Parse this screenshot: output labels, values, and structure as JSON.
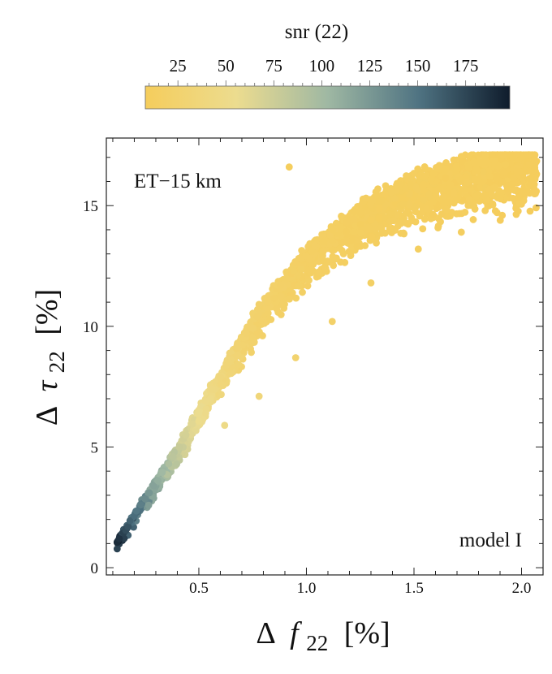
{
  "chart_data": {
    "type": "scatter",
    "title": "",
    "xlabel": "Δ f22 [%]",
    "xlabel_parts": {
      "delta": "Δ",
      "symbol": "f",
      "sub": "22",
      "unit": "[%]"
    },
    "ylabel": "Δ τ22 [%]",
    "ylabel_parts": {
      "delta": "Δ",
      "symbol": "τ",
      "sub": "22",
      "unit": "[%]"
    },
    "xlim": [
      0.07,
      2.1
    ],
    "ylim": [
      -0.3,
      17.8
    ],
    "x_ticks": [
      0.5,
      1.0,
      1.5,
      2.0
    ],
    "x_tick_labels": [
      "0.5",
      "1.0",
      "1.5",
      "2.0"
    ],
    "y_ticks": [
      0,
      5,
      10,
      15
    ],
    "y_tick_labels": [
      "0",
      "5",
      "10",
      "15"
    ],
    "grid": false,
    "annotations": {
      "top_left": "ET−15 km",
      "bottom_right": "model I"
    },
    "colorbar": {
      "label": "snr (22)",
      "range": [
        8,
        198
      ],
      "ticks": [
        25,
        50,
        75,
        100,
        125,
        150,
        175
      ],
      "tick_labels": [
        "25",
        "50",
        "75",
        "100",
        "125",
        "150",
        "175"
      ],
      "colors": [
        "#f5cd5c",
        "#ecdc8f",
        "#9fb8a3",
        "#4f7382",
        "#0f1c2c"
      ]
    },
    "series": [
      {
        "name": "Δ τ22 vs Δ f22, colored by snr (22)",
        "points": [
          [
            0.12,
            1.05,
            190
          ],
          [
            0.13,
            1.2,
            186
          ],
          [
            0.15,
            1.45,
            178
          ],
          [
            0.16,
            1.55,
            172
          ],
          [
            0.17,
            1.7,
            168
          ],
          [
            0.18,
            1.95,
            160
          ],
          [
            0.2,
            2.15,
            154
          ],
          [
            0.21,
            2.35,
            148
          ],
          [
            0.23,
            2.6,
            142
          ],
          [
            0.25,
            2.85,
            134
          ],
          [
            0.27,
            3.1,
            126
          ],
          [
            0.29,
            3.4,
            118
          ],
          [
            0.31,
            3.6,
            110
          ],
          [
            0.33,
            3.95,
            102
          ],
          [
            0.36,
            4.3,
            94
          ],
          [
            0.38,
            4.6,
            86
          ],
          [
            0.41,
            5.0,
            78
          ],
          [
            0.44,
            5.5,
            70
          ],
          [
            0.47,
            5.95,
            62
          ],
          [
            0.5,
            6.4,
            56
          ],
          [
            0.53,
            6.9,
            50
          ],
          [
            0.56,
            7.4,
            44
          ],
          [
            0.6,
            7.9,
            38
          ],
          [
            0.64,
            8.5,
            33
          ],
          [
            0.68,
            9.1,
            28
          ],
          [
            0.72,
            9.7,
            25
          ],
          [
            0.77,
            10.4,
            22
          ],
          [
            0.82,
            11.0,
            20
          ],
          [
            0.88,
            11.7,
            18
          ],
          [
            0.94,
            12.3,
            16
          ],
          [
            1.0,
            12.9,
            15
          ],
          [
            1.08,
            13.5,
            14
          ],
          [
            1.16,
            14.1,
            13
          ],
          [
            1.25,
            14.7,
            12
          ],
          [
            1.35,
            15.2,
            11
          ],
          [
            1.46,
            15.7,
            11
          ],
          [
            1.58,
            16.1,
            10
          ],
          [
            1.7,
            16.5,
            10
          ],
          [
            1.82,
            16.8,
            10
          ],
          [
            1.96,
            17.0,
            9
          ],
          [
            2.06,
            16.9,
            9
          ],
          [
            0.92,
            16.6,
            10
          ],
          [
            0.62,
            5.9,
            48
          ],
          [
            0.78,
            7.1,
            36
          ],
          [
            0.95,
            8.7,
            26
          ],
          [
            1.12,
            10.2,
            20
          ],
          [
            1.3,
            11.8,
            16
          ],
          [
            1.52,
            13.2,
            13
          ],
          [
            1.72,
            13.9,
            12
          ],
          [
            1.9,
            15.3,
            10
          ]
        ]
      }
    ]
  }
}
